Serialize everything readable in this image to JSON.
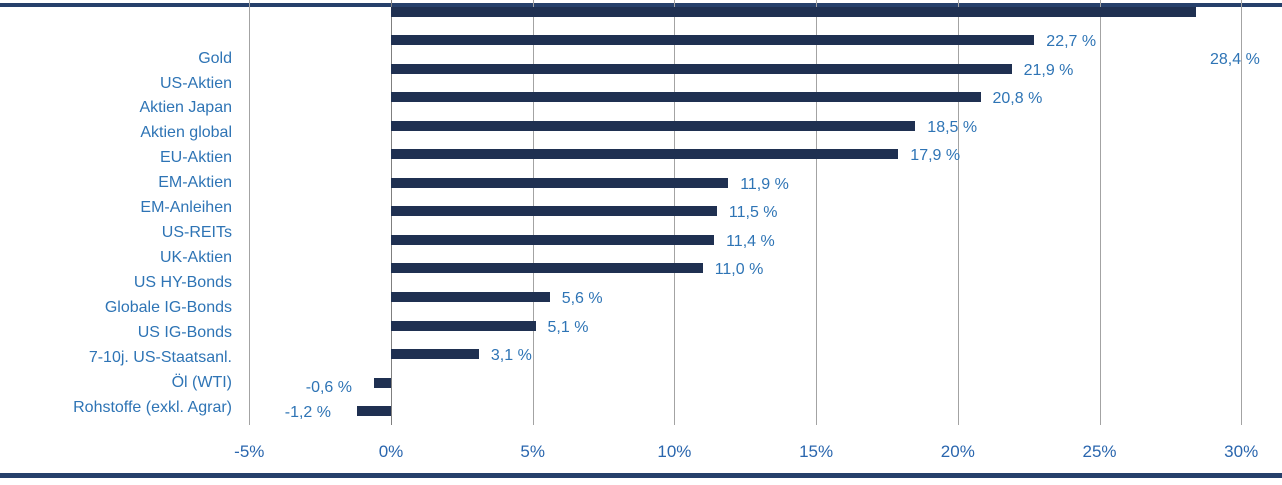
{
  "chart_data": {
    "type": "bar",
    "orientation": "horizontal",
    "title": "",
    "xlabel": "",
    "ylabel": "",
    "categories": [
      "Gold",
      "US-Aktien",
      "Aktien Japan",
      "Aktien global",
      "EU-Aktien",
      "EM-Aktien",
      "EM-Anleihen",
      "US-REITs",
      "UK-Aktien",
      "US HY-Bonds",
      "Globale IG-Bonds",
      "US IG-Bonds",
      "7-10j. US-Staatsanl.",
      "Öl (WTI)",
      "Rohstoffe (exkl. Agrar)"
    ],
    "values": [
      28.4,
      22.7,
      21.9,
      20.8,
      18.5,
      17.9,
      11.9,
      11.5,
      11.4,
      11.0,
      5.6,
      5.1,
      3.1,
      -0.6,
      -1.2
    ],
    "value_labels": [
      "28,4 %",
      "22,7 %",
      "21,9 %",
      "20,8 %",
      "18,5 %",
      "17,9 %",
      "11,9 %",
      "11,5 %",
      "11,4 %",
      "11,0 %",
      "5,6 %",
      "5,1 %",
      "3,1 %",
      "-0,6 %",
      "-1,2 %"
    ],
    "x_axis": {
      "range": [
        -5,
        30
      ],
      "ticks": [
        -5,
        0,
        5,
        10,
        15,
        20,
        25,
        30
      ],
      "tick_labels": [
        "-5%",
        "0%",
        "5%",
        "10%",
        "15%",
        "20%",
        "25%",
        "30%"
      ]
    },
    "grid": "vertical-gridlines-on",
    "legend": "none"
  },
  "colors": {
    "bar": "#1F3051",
    "category_label": "#2E74B5",
    "value_label": "#2E74B5",
    "axis_label": "#2A66AE",
    "gridline": "#A3A3A3",
    "zero_line": "#7F7F7F",
    "border_rule": "#26406B",
    "background": "#FFFFFF"
  }
}
